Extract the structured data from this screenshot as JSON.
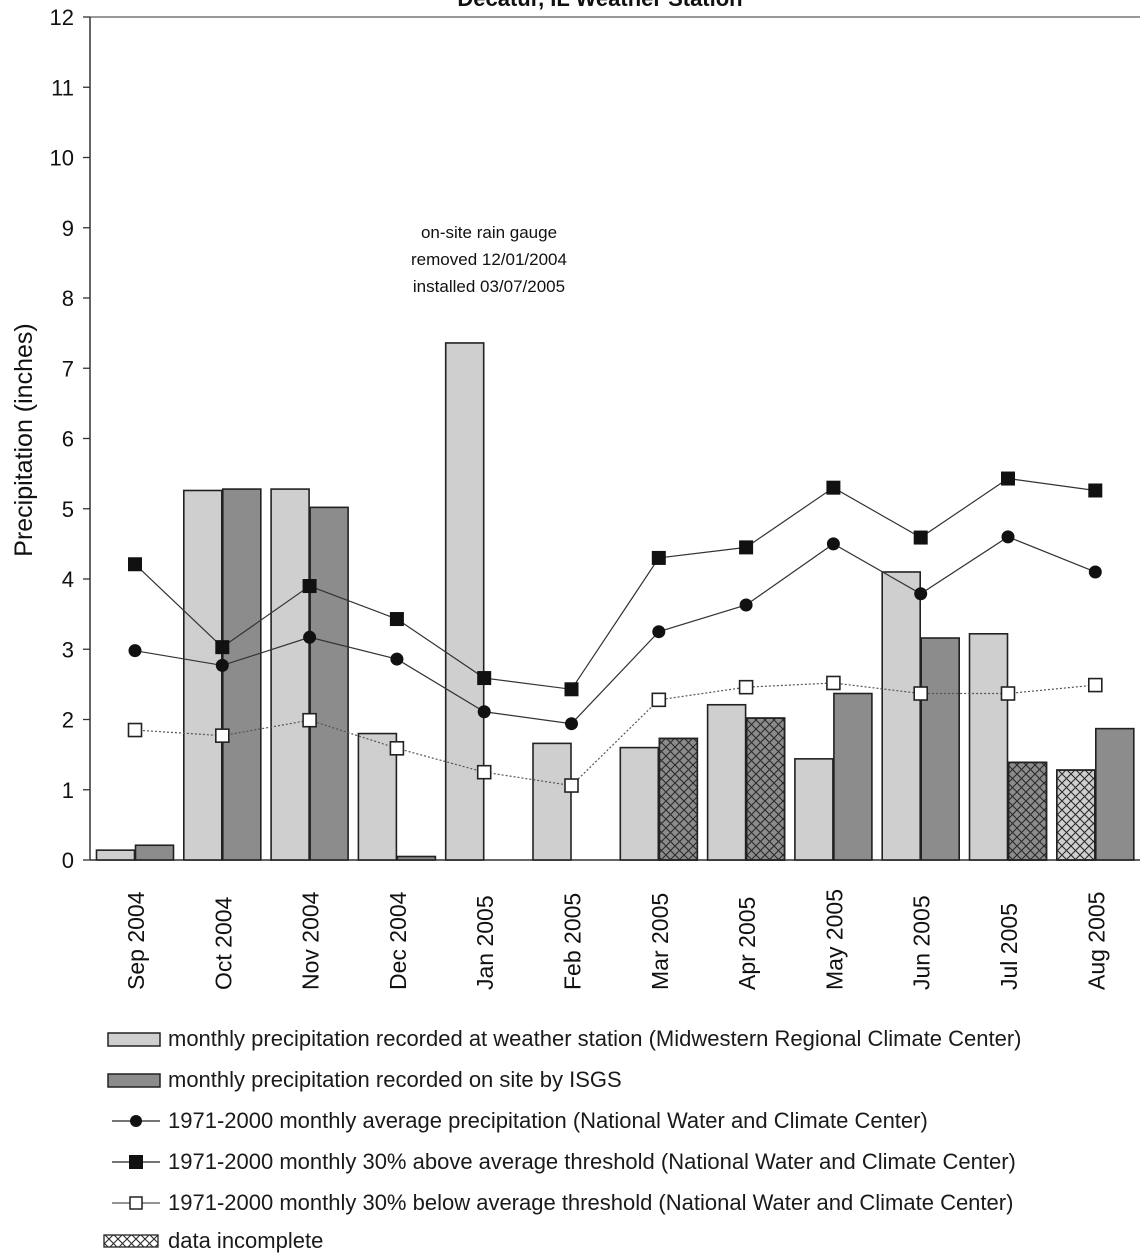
{
  "chart_data": {
    "type": "bar",
    "title": "Decatur, IL Weather Station",
    "ylabel": "Precipitation (inches)",
    "xlabel": "",
    "ylim": [
      0,
      12
    ],
    "yticks": [
      "0",
      "1",
      "2",
      "3",
      "4",
      "5",
      "6",
      "7",
      "8",
      "9",
      "10",
      "11",
      "12"
    ],
    "grid": false,
    "categories": [
      "Sep 2004",
      "Oct 2004",
      "Nov 2004",
      "Dec 2004",
      "Jan 2005",
      "Feb 2005",
      "Mar 2005",
      "Apr 2005",
      "May 2005",
      "Jun 2005",
      "Jul 2005",
      "Aug 2005"
    ],
    "series": [
      {
        "name": "monthly precipitation recorded at weather station (Midwestern Regional Climate Center)",
        "kind": "bar",
        "color": "#cfcfcf",
        "values": [
          0.14,
          5.26,
          5.28,
          1.8,
          7.36,
          1.66,
          1.6,
          2.21,
          1.44,
          4.1,
          3.22,
          1.28
        ],
        "incomplete": [
          false,
          false,
          false,
          false,
          false,
          false,
          false,
          false,
          false,
          false,
          false,
          true
        ]
      },
      {
        "name": "monthly precipitation recorded on site by ISGS",
        "kind": "bar",
        "color": "#8c8c8c",
        "values": [
          0.21,
          5.28,
          5.02,
          0.05,
          null,
          null,
          1.73,
          2.02,
          2.37,
          3.16,
          1.39,
          1.87
        ],
        "incomplete": [
          false,
          false,
          false,
          false,
          false,
          false,
          true,
          true,
          false,
          false,
          true,
          false
        ]
      },
      {
        "name": "1971-2000 monthly average precipitation (National Water and Climate Center)",
        "kind": "line",
        "marker": "circle-filled",
        "values": [
          2.98,
          2.77,
          3.17,
          2.86,
          2.11,
          1.94,
          3.25,
          3.63,
          4.5,
          3.79,
          4.6,
          4.1
        ]
      },
      {
        "name": "1971-2000 monthly 30% above average threshold  (National Water and Climate Center)",
        "kind": "line",
        "marker": "square-filled",
        "values": [
          4.21,
          3.03,
          3.9,
          3.43,
          2.59,
          2.43,
          4.3,
          4.45,
          5.3,
          4.59,
          5.43,
          5.26
        ]
      },
      {
        "name": "1971-2000 monthly 30% below average threshold (National Water and Climate Center)",
        "kind": "line",
        "marker": "square-open",
        "values": [
          1.85,
          1.77,
          1.99,
          1.59,
          1.25,
          1.06,
          2.28,
          2.46,
          2.52,
          2.37,
          2.37,
          2.49
        ]
      }
    ],
    "incomplete_label": "data incomplete",
    "annotation": [
      "on-site rain gauge",
      "removed 12/01/2004",
      "installed 03/07/2005"
    ],
    "legend_position": "bottom"
  }
}
